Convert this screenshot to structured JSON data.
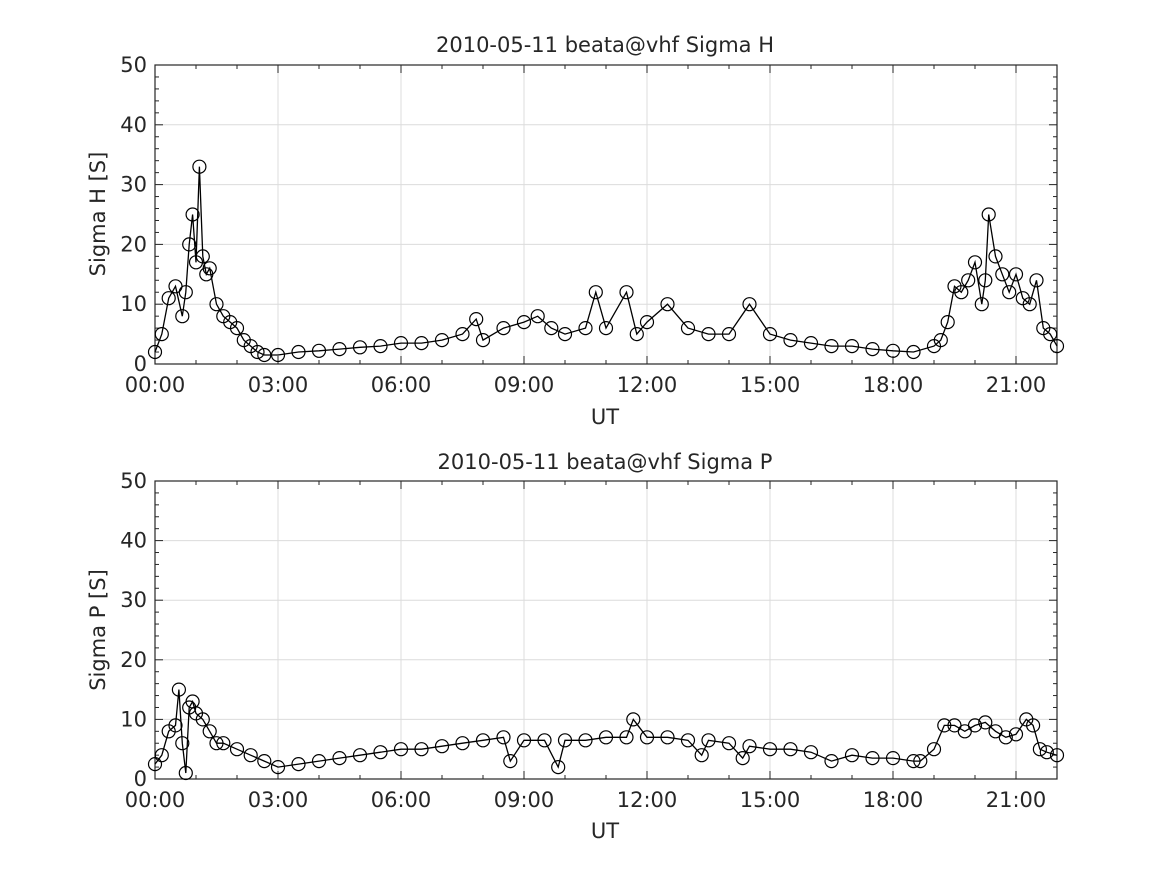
{
  "chart_data": [
    {
      "type": "line",
      "title": "2010-05-11  beata@vhf Sigma H",
      "xlabel": "UT",
      "ylabel": "Sigma H [S]",
      "ylim": [
        0,
        50
      ],
      "xlim_hours": [
        0,
        22
      ],
      "yticks": [
        "0",
        "10",
        "20",
        "30",
        "40",
        "50"
      ],
      "xticks": [
        "00:00",
        "03:00",
        "06:00",
        "09:00",
        "12:00",
        "15:00",
        "18:00",
        "21:00"
      ],
      "grid": true,
      "marker": "open-circle",
      "series": [
        {
          "x": [
            "00:00",
            "00:10",
            "00:20",
            "00:30",
            "00:40",
            "00:45",
            "00:50",
            "00:55",
            "01:00",
            "01:05",
            "01:10",
            "01:15",
            "01:20",
            "01:30",
            "01:40",
            "01:50",
            "02:00",
            "02:10",
            "02:20",
            "02:30",
            "02:40",
            "03:00",
            "03:30",
            "04:00",
            "04:30",
            "05:00",
            "05:30",
            "06:00",
            "06:30",
            "07:00",
            "07:30",
            "07:50",
            "08:00",
            "08:30",
            "09:00",
            "09:20",
            "09:40",
            "10:00",
            "10:30",
            "10:45",
            "11:00",
            "11:30",
            "11:45",
            "12:00",
            "12:30",
            "13:00",
            "13:30",
            "14:00",
            "14:30",
            "15:00",
            "15:30",
            "16:00",
            "16:30",
            "17:00",
            "17:30",
            "18:00",
            "18:30",
            "19:00",
            "19:10",
            "19:20",
            "19:30",
            "19:40",
            "19:50",
            "20:00",
            "20:10",
            "20:15",
            "20:20",
            "20:30",
            "20:40",
            "20:50",
            "21:00",
            "21:10",
            "21:20",
            "21:30",
            "21:40",
            "21:50",
            "22:00"
          ],
          "y": [
            2,
            5,
            11,
            13,
            8,
            12,
            20,
            25,
            17,
            33,
            18,
            15,
            16,
            10,
            8,
            7,
            6,
            4,
            3,
            2,
            1.5,
            1.5,
            2,
            2.2,
            2.5,
            2.8,
            3,
            3.5,
            3.5,
            4,
            5,
            7.5,
            4,
            6,
            7,
            8,
            6,
            5,
            6,
            12,
            6,
            12,
            5,
            7,
            10,
            6,
            5,
            5,
            10,
            5,
            4,
            3.5,
            3,
            3,
            2.5,
            2.2,
            2,
            3,
            4,
            7,
            13,
            12,
            14,
            17,
            10,
            14,
            25,
            18,
            15,
            12,
            15,
            11,
            10,
            14,
            6,
            5,
            3
          ]
        }
      ]
    },
    {
      "type": "line",
      "title": "2010-05-11  beata@vhf Sigma P",
      "xlabel": "UT",
      "ylabel": "Sigma P [S]",
      "ylim": [
        0,
        50
      ],
      "xlim_hours": [
        0,
        22
      ],
      "yticks": [
        "0",
        "10",
        "20",
        "30",
        "40",
        "50"
      ],
      "xticks": [
        "00:00",
        "03:00",
        "06:00",
        "09:00",
        "12:00",
        "15:00",
        "18:00",
        "21:00"
      ],
      "grid": true,
      "marker": "open-circle",
      "series": [
        {
          "x": [
            "00:00",
            "00:10",
            "00:20",
            "00:30",
            "00:35",
            "00:40",
            "00:45",
            "00:50",
            "00:55",
            "01:00",
            "01:10",
            "01:20",
            "01:30",
            "01:40",
            "02:00",
            "02:20",
            "02:40",
            "03:00",
            "03:30",
            "04:00",
            "04:30",
            "05:00",
            "05:30",
            "06:00",
            "06:30",
            "07:00",
            "07:30",
            "08:00",
            "08:30",
            "08:40",
            "09:00",
            "09:30",
            "09:50",
            "10:00",
            "10:30",
            "11:00",
            "11:30",
            "11:40",
            "12:00",
            "12:30",
            "13:00",
            "13:20",
            "13:30",
            "14:00",
            "14:20",
            "14:30",
            "15:00",
            "15:30",
            "16:00",
            "16:30",
            "17:00",
            "17:30",
            "18:00",
            "18:30",
            "18:40",
            "19:00",
            "19:15",
            "19:30",
            "19:45",
            "20:00",
            "20:15",
            "20:30",
            "20:45",
            "21:00",
            "21:15",
            "21:25",
            "21:35",
            "21:45",
            "22:00"
          ],
          "y": [
            2.5,
            4,
            8,
            9,
            15,
            6,
            1,
            12,
            13,
            11,
            10,
            8,
            6,
            6,
            5,
            4,
            3,
            2,
            2.5,
            3,
            3.5,
            4,
            4.5,
            5,
            5,
            5.5,
            6,
            6.5,
            7,
            3,
            6.5,
            6.5,
            2,
            6.5,
            6.5,
            7,
            7,
            10,
            7,
            7,
            6.5,
            4,
            6.5,
            6,
            3.5,
            5.5,
            5,
            5,
            4.5,
            3,
            4,
            3.5,
            3.5,
            3,
            3,
            5,
            9,
            9,
            8,
            9,
            9.5,
            8,
            7,
            7.5,
            10,
            9,
            5,
            4.5,
            4
          ]
        }
      ]
    }
  ]
}
